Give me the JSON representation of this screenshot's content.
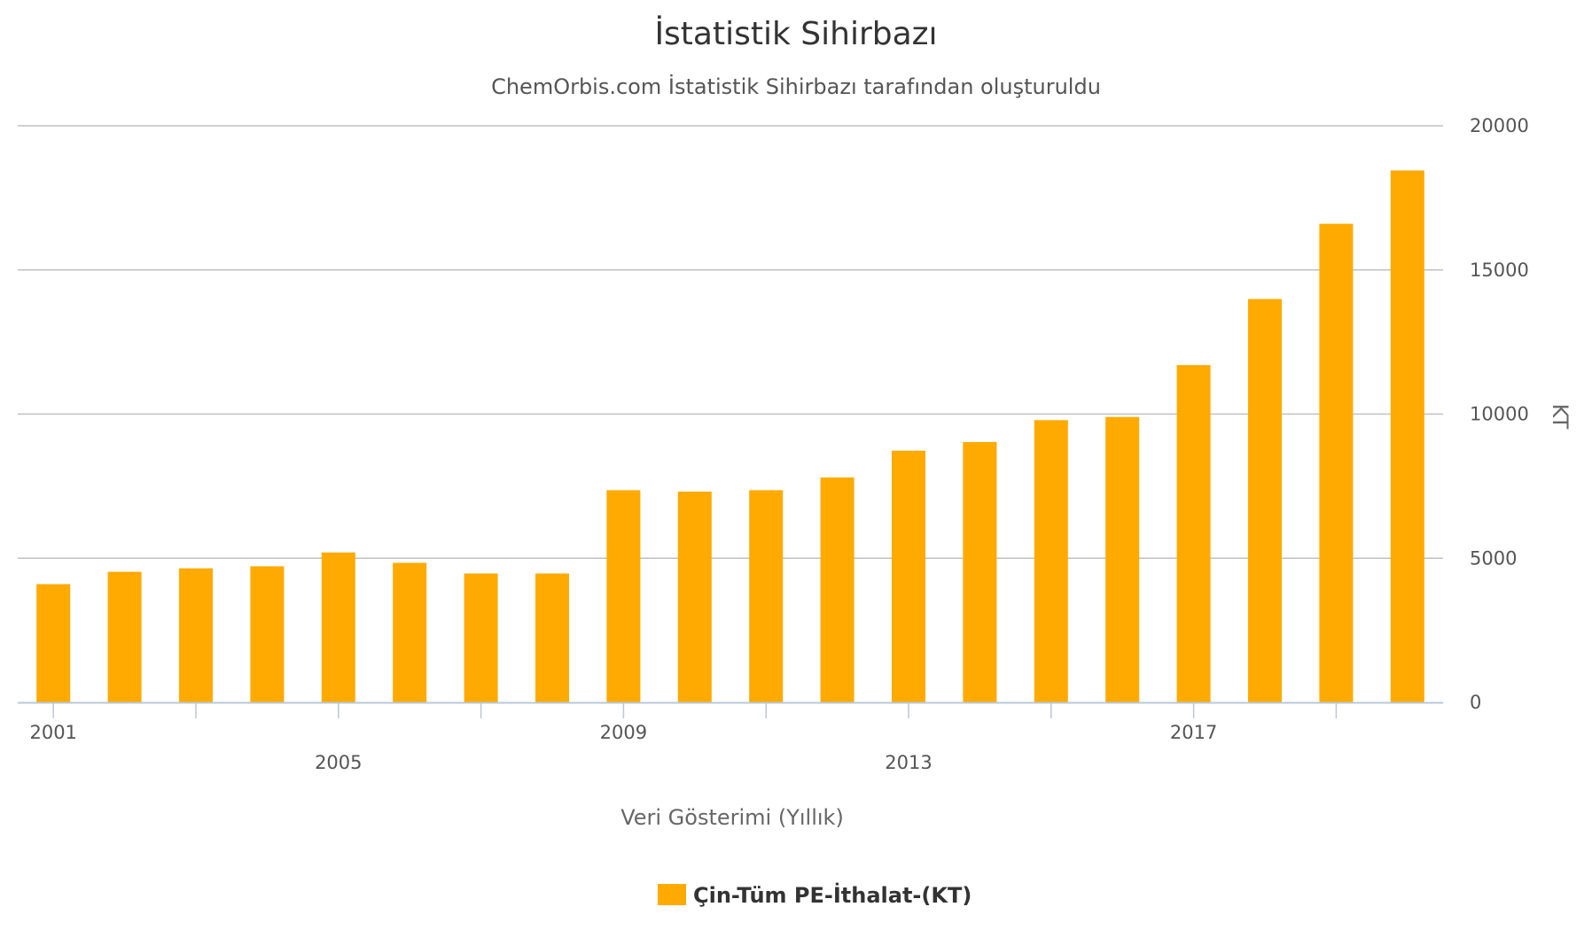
{
  "chart_data": {
    "type": "bar",
    "title": "İstatistik Sihirbazı",
    "subtitle": "ChemOrbis.com İstatistik Sihirbazı tarafından oluşturuldu",
    "xlabel": "Veri Gösterimi (Yıllık)",
    "ylabel": "KT",
    "ylim": [
      0,
      20000
    ],
    "yticks": [
      "0",
      "5000",
      "10000",
      "15000",
      "20000"
    ],
    "y_axis_position": "right",
    "grid": true,
    "legend_position": "bottom-center",
    "categories": [
      "2001",
      "2002",
      "2003",
      "2004",
      "2005",
      "2006",
      "2007",
      "2008",
      "2009",
      "2010",
      "2011",
      "2012",
      "2013",
      "2014",
      "2015",
      "2016",
      "2017",
      "2018",
      "2019",
      "2020"
    ],
    "x_tick_labels": [
      {
        "label": "2001",
        "index": 0,
        "row": 0
      },
      {
        "label": "2005",
        "index": 4,
        "row": 1
      },
      {
        "label": "2009",
        "index": 8,
        "row": 0
      },
      {
        "label": "2013",
        "index": 12,
        "row": 1
      },
      {
        "label": "2017",
        "index": 16,
        "row": 0
      }
    ],
    "series": [
      {
        "name": "Çin-Tüm PE-İthalat-(KT)",
        "color": "#FFAA00",
        "values": [
          4100,
          4530,
          4650,
          4720,
          5200,
          4840,
          4470,
          4470,
          7360,
          7310,
          7360,
          7800,
          8730,
          9030,
          9790,
          9900,
          11700,
          13990,
          16600,
          18450
        ]
      }
    ]
  }
}
